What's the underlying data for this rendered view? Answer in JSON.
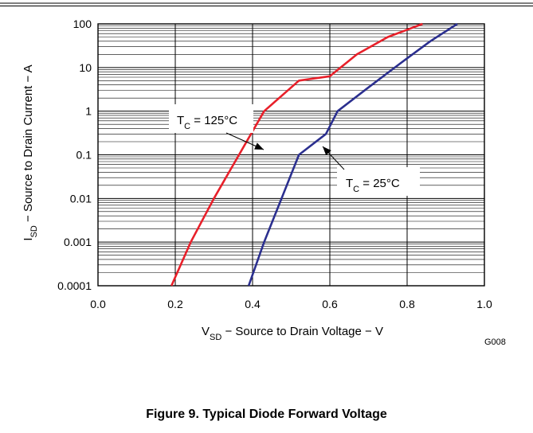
{
  "chart_data": {
    "type": "line",
    "xlabel": {
      "main": "V",
      "sub": "SD",
      "rest": " − Source to Drain Voltage − V"
    },
    "ylabel": {
      "main": "I",
      "sub": "SD",
      "rest": " − Source to Drain Current − A"
    },
    "xlim": [
      0.0,
      1.0
    ],
    "ylim": [
      0.0001,
      100
    ],
    "yscale": "log",
    "grid": true,
    "x_ticks": [
      "0.0",
      "0.2",
      "0.4",
      "0.6",
      "0.8",
      "1.0"
    ],
    "x_tick_values": [
      0.0,
      0.2,
      0.4,
      0.6,
      0.8,
      1.0
    ],
    "y_ticks": [
      "0.0001",
      "0.001",
      "0.01",
      "0.1",
      "1",
      "10",
      "100"
    ],
    "y_tick_values": [
      0.0001,
      0.001,
      0.01,
      0.1,
      1,
      10,
      100
    ],
    "series": [
      {
        "label_main": "T",
        "label_sub": "C",
        "label_rest": " = 125°C",
        "color": "#e8202a",
        "points": [
          [
            0.19,
            0.0001
          ],
          [
            0.24,
            0.001
          ],
          [
            0.3,
            0.01
          ],
          [
            0.365,
            0.1
          ],
          [
            0.43,
            1
          ],
          [
            0.52,
            5
          ],
          [
            0.6,
            6.3
          ],
          [
            0.67,
            20
          ],
          [
            0.75,
            50
          ],
          [
            0.84,
            100
          ]
        ]
      },
      {
        "label_main": "T",
        "label_sub": "C",
        "label_rest": " = 25°C",
        "color": "#2b2f8f",
        "points": [
          [
            0.39,
            0.0001
          ],
          [
            0.43,
            0.001
          ],
          [
            0.475,
            0.01
          ],
          [
            0.52,
            0.1
          ],
          [
            0.59,
            0.3
          ],
          [
            0.62,
            1
          ],
          [
            0.7,
            3.5
          ],
          [
            0.78,
            12
          ],
          [
            0.86,
            40
          ],
          [
            0.93,
            100
          ]
        ]
      }
    ],
    "figure_id": "G008"
  },
  "caption": "Figure 9. Typical Diode Forward Voltage",
  "colors": {
    "frame": "#000000",
    "grid": "#000000",
    "background": "#ffffff"
  }
}
